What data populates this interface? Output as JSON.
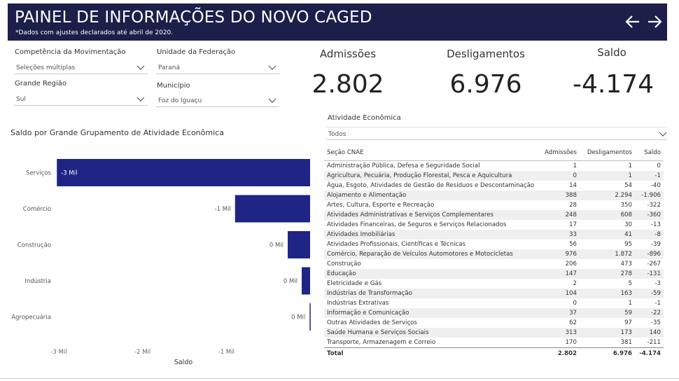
{
  "header": {
    "title": "PAINEL DE INFORMAÇÕES DO NOVO CAGED",
    "subtitle": "*Dados com ajustes declarados até abril de 2020."
  },
  "filters": {
    "competencia": {
      "label": "Competência da Movimentação",
      "value": "Seleções múltiplas"
    },
    "uf": {
      "label": "Unidade da Federação",
      "value": "Paraná"
    },
    "regiao": {
      "label": "Grande Região",
      "value": "Sul"
    },
    "municipio": {
      "label": "Município",
      "value": "Foz do Iguaçu"
    },
    "atividade": {
      "label": "Atividade Econômica",
      "value": "Todos"
    }
  },
  "kpis": {
    "admissoes": {
      "label": "Admissões",
      "value": "2.802"
    },
    "desligamentos": {
      "label": "Desligamentos",
      "value": "6.976"
    },
    "saldo": {
      "label": "Saldo",
      "value": "-4.174"
    }
  },
  "chart_data": {
    "type": "bar",
    "orientation": "horizontal",
    "title": "Saldo por Grande Grupamento de Atividade Econômica",
    "xlabel": "Saldo",
    "ylabel": "",
    "categories": [
      "Serviços",
      "Comércio",
      "Construção",
      "Indústria",
      "Agropecuária"
    ],
    "values": [
      -3023,
      -896,
      -267,
      -100,
      -6
    ],
    "data_labels": [
      "-3 Mil",
      "-1 Mil",
      "0 Mil",
      "0 Mil",
      "0 Mil"
    ],
    "x_ticks": [
      "-3 Mil",
      "-2 Mil",
      "-1 Mil"
    ],
    "x_tick_values": [
      -3000,
      -2000,
      -1000
    ],
    "xlim": [
      -3100,
      0
    ],
    "bar_color": "#1f2585",
    "grid": false
  },
  "table": {
    "columns": [
      "Seção CNAE",
      "Admissões",
      "Desligamentos",
      "Saldo"
    ],
    "rows": [
      [
        "Administração Pública, Defesa e Seguridade Social",
        "1",
        "1",
        "0"
      ],
      [
        "Agricultura, Pecuária, Produção Florestal, Pesca e Aquicultura",
        "0",
        "1",
        "-1"
      ],
      [
        "Água, Esgoto, Atividades de Gestão de Resíduos e Descontaminação",
        "14",
        "54",
        "-40"
      ],
      [
        "Alojamento e Alimentação",
        "388",
        "2.294",
        "-1.906"
      ],
      [
        "Artes, Cultura, Esporte e Recreação",
        "28",
        "350",
        "-322"
      ],
      [
        "Atividades Administrativas e Serviços Complementares",
        "248",
        "608",
        "-360"
      ],
      [
        "Atividades Financeiras, de Seguros e Serviços Relacionados",
        "17",
        "30",
        "-13"
      ],
      [
        "Atividades Imobiliárias",
        "33",
        "41",
        "-8"
      ],
      [
        "Atividades Profissionais, Científicas e Técnicas",
        "56",
        "95",
        "-39"
      ],
      [
        "Comércio, Reparação de Veículos Automotores e Motocicletas",
        "976",
        "1.872",
        "-896"
      ],
      [
        "Construção",
        "206",
        "473",
        "-267"
      ],
      [
        "Educação",
        "147",
        "278",
        "-131"
      ],
      [
        "Eletricidade e Gás",
        "2",
        "5",
        "-3"
      ],
      [
        "Indústrias de Transformação",
        "104",
        "163",
        "-59"
      ],
      [
        "Indústrias Extrativas",
        "0",
        "1",
        "-1"
      ],
      [
        "Informação e Comunicação",
        "37",
        "59",
        "-22"
      ],
      [
        "Outras Atividades de Serviços",
        "62",
        "97",
        "-35"
      ],
      [
        "Saúde Humana e Serviços Sociais",
        "313",
        "173",
        "140"
      ],
      [
        "Transporte, Armazenagem e Correio",
        "170",
        "381",
        "-211"
      ]
    ],
    "total": [
      "Total",
      "2.802",
      "6.976",
      "-4.174"
    ]
  },
  "icons": {
    "prev": "arrow-left-icon",
    "next": "arrow-right-icon",
    "dropdown": "chevron-down-icon"
  }
}
